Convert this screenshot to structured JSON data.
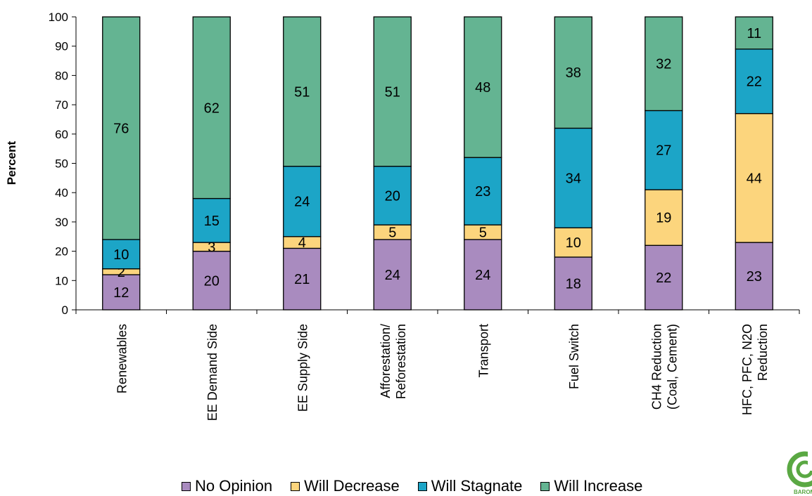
{
  "chart_data": {
    "type": "bar",
    "stacked": true,
    "ylabel": "Percent",
    "xlabel": "",
    "ylim": [
      0,
      100
    ],
    "yticks": [
      0,
      10,
      20,
      30,
      40,
      50,
      60,
      70,
      80,
      90,
      100
    ],
    "categories": [
      [
        "Renewables"
      ],
      [
        "EE Demand Side"
      ],
      [
        "EE Supply Side"
      ],
      [
        "Afforestation/",
        "Reforestation"
      ],
      [
        "Transport"
      ],
      [
        "Fuel Switch"
      ],
      [
        "CH4 Reduction",
        "(Coal, Cement)"
      ],
      [
        "HFC, PFC, N2O",
        "Reduction"
      ]
    ],
    "series": [
      {
        "name": "No Opinion",
        "color": "#a98bbf",
        "values": [
          12,
          20,
          21,
          24,
          24,
          18,
          22,
          23
        ]
      },
      {
        "name": "Will Decrease",
        "color": "#fcd57d",
        "values": [
          2,
          3,
          4,
          5,
          5,
          10,
          19,
          44
        ]
      },
      {
        "name": "Will Stagnate",
        "color": "#1ca5c7",
        "values": [
          10,
          15,
          24,
          20,
          23,
          34,
          27,
          22
        ]
      },
      {
        "name": "Will Increase",
        "color": "#64b492",
        "values": [
          76,
          62,
          51,
          51,
          48,
          38,
          32,
          11
        ]
      }
    ],
    "legend_position": "bottom",
    "grid": false
  },
  "logo": {
    "text": "BAROM",
    "icon": "leaf-logo-icon",
    "color": "#5aa843"
  }
}
